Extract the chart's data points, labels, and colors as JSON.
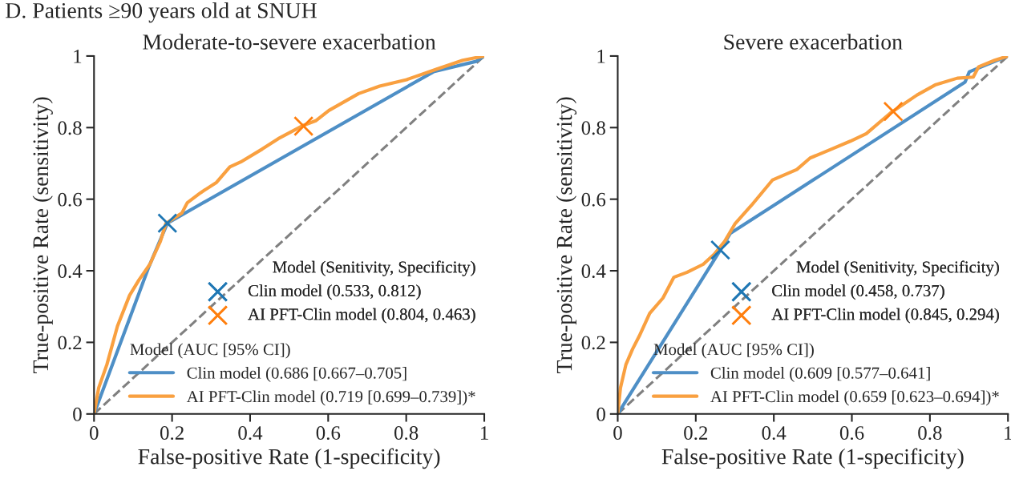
{
  "chart_data": [
    {
      "type": "line",
      "title": "Moderate-to-severe exacerbation",
      "xlabel": "False-positive Rate (1-specificity)",
      "ylabel": "True-positive Rate (sensitivity)",
      "legend_title": "Model (AUC [95% CI])",
      "annotations": [
        "D. Patients ≥90 years old at SNUH",
        "Model (Senitivity, Specificity)"
      ],
      "xlim": [
        0,
        1
      ],
      "ylim": [
        0,
        1
      ],
      "xticks": [
        0,
        0.2,
        0.4,
        0.6,
        0.8,
        1
      ],
      "yticks": [
        0,
        0.2,
        0.4,
        0.6,
        0.8,
        1
      ],
      "grid": false,
      "legend": "bottom right",
      "series": [
        {
          "line_style": "dashed",
          "color": "#808080",
          "x": [
            0,
            1
          ],
          "values": [
            0,
            1
          ]
        },
        {
          "name": "Clin model (0.686 [0.667–0.705]",
          "color": "#4e8fc6",
          "x": [
            0,
            0.139,
            0.188,
            0.87,
            0.979,
            1
          ],
          "values": [
            0,
            0.407,
            0.533,
            0.956,
            0.985,
            1
          ]
        },
        {
          "name": "AI PFT-Clin model (0.719 [0.699–0.739])*",
          "color": "#f9a040",
          "x": [
            0,
            0.012,
            0.033,
            0.06,
            0.091,
            0.115,
            0.143,
            0.17,
            0.184,
            0.225,
            0.239,
            0.273,
            0.314,
            0.348,
            0.376,
            0.431,
            0.472,
            0.534,
            0.568,
            0.602,
            0.678,
            0.732,
            0.801,
            0.877,
            0.945,
            1
          ],
          "values": [
            0,
            0.073,
            0.138,
            0.245,
            0.331,
            0.374,
            0.418,
            0.482,
            0.532,
            0.561,
            0.59,
            0.618,
            0.647,
            0.69,
            0.704,
            0.74,
            0.769,
            0.805,
            0.819,
            0.848,
            0.895,
            0.916,
            0.934,
            0.963,
            0.988,
            1
          ]
        },
        {
          "type": "scatter",
          "marker": "cross",
          "name": "Clin model (0.533, 0.812)",
          "color": "#1f77b4",
          "x": [
            0.188
          ],
          "values": [
            0.533
          ]
        },
        {
          "type": "scatter",
          "marker": "cross",
          "name": "AI PFT-Clin model (0.804, 0.463)",
          "color": "#ff7f0e",
          "x": [
            0.537
          ],
          "values": [
            0.804
          ]
        }
      ]
    },
    {
      "type": "line",
      "title": "Severe exacerbation",
      "xlabel": "False-positive Rate (1-specificity)",
      "ylabel": "True-positive Rate (sensitivity)",
      "legend_title": "Model (AUC [95% CI])",
      "annotations": [
        "Model (Senitivity, Specificity)"
      ],
      "xlim": [
        0,
        1
      ],
      "ylim": [
        0,
        1
      ],
      "xticks": [
        0,
        0.2,
        0.4,
        0.6,
        0.8,
        1
      ],
      "yticks": [
        0,
        0.2,
        0.4,
        0.6,
        0.8,
        1
      ],
      "grid": false,
      "legend": "bottom right",
      "series": [
        {
          "line_style": "dashed",
          "color": "#808080",
          "x": [
            0,
            1
          ],
          "values": [
            0,
            1
          ]
        },
        {
          "name": "Clin model (0.609 [0.577–0.641]",
          "color": "#4e8fc6",
          "x": [
            0,
            0.263,
            0.288,
            0.89,
            0.901,
            1
          ],
          "values": [
            0,
            0.458,
            0.504,
            0.927,
            0.956,
            1
          ]
        },
        {
          "name": "AI PFT-Clin model (0.659 [0.623–0.694])*",
          "color": "#f9a040",
          "x": [
            0,
            0.007,
            0.021,
            0.038,
            0.055,
            0.082,
            0.116,
            0.144,
            0.178,
            0.219,
            0.247,
            0.274,
            0.301,
            0.342,
            0.397,
            0.459,
            0.493,
            0.548,
            0.596,
            0.637,
            0.699,
            0.767,
            0.815,
            0.87,
            0.911,
            0.925,
            0.966,
            1
          ],
          "values": [
            0,
            0.073,
            0.138,
            0.181,
            0.217,
            0.281,
            0.324,
            0.382,
            0.396,
            0.418,
            0.446,
            0.482,
            0.532,
            0.582,
            0.654,
            0.683,
            0.715,
            0.74,
            0.762,
            0.783,
            0.841,
            0.891,
            0.92,
            0.938,
            0.941,
            0.97,
            0.988,
            1
          ]
        },
        {
          "type": "scatter",
          "marker": "cross",
          "name": "Clin model (0.458, 0.737)",
          "color": "#1f77b4",
          "x": [
            0.263
          ],
          "values": [
            0.458
          ]
        },
        {
          "type": "scatter",
          "marker": "cross",
          "name": "AI PFT-Clin model (0.845, 0.294)",
          "color": "#ff7f0e",
          "x": [
            0.706
          ],
          "values": [
            0.845
          ]
        }
      ]
    }
  ]
}
